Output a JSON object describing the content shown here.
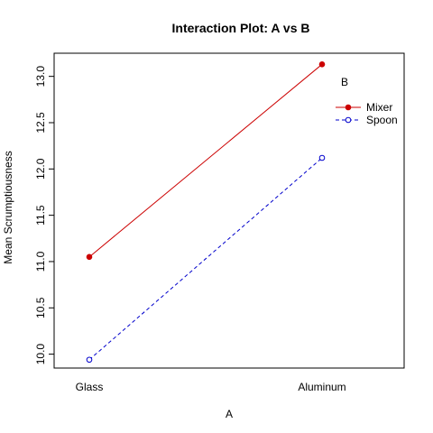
{
  "chart_data": {
    "type": "line",
    "title": "Interaction Plot: A vs B",
    "xlabel": "A",
    "ylabel": "Mean Scrumptiousness",
    "categories": [
      "Glass",
      "Aluminum"
    ],
    "ylim": [
      9.85,
      13.25
    ],
    "yticks": [
      "10.0",
      "10.5",
      "11.0",
      "11.5",
      "12.0",
      "12.5",
      "13.0"
    ],
    "grid": false,
    "legend": {
      "title": "B",
      "position": "top-right"
    },
    "series": [
      {
        "name": "Mixer",
        "values": [
          11.05,
          13.13
        ],
        "color": "#cc0000",
        "line": "solid",
        "marker": "filled-circle"
      },
      {
        "name": "Spoon",
        "values": [
          9.94,
          12.12
        ],
        "color": "#0000cc",
        "line": "dashed",
        "marker": "open-circle"
      }
    ]
  }
}
